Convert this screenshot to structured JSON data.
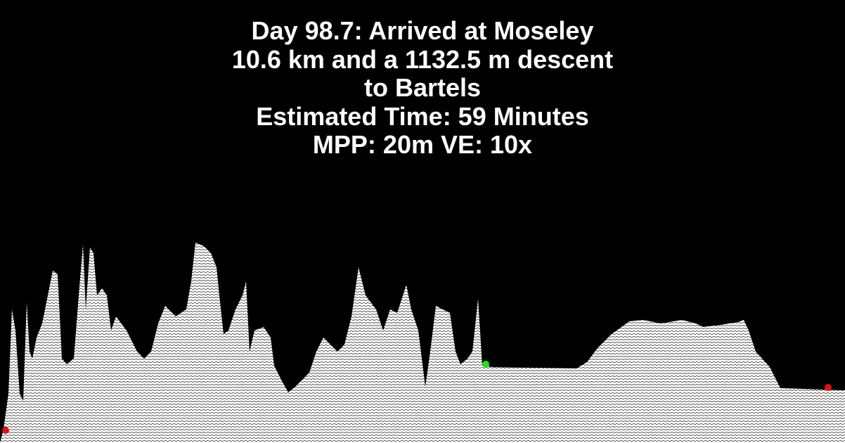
{
  "header": {
    "title": "Day 98.7: Arrived at Moseley",
    "route_lines": [
      "10.6 km and a 1132.5 m descent",
      "to Bartels"
    ],
    "time": "Estimated Time: 59 Minutes",
    "scale": "MPP: 20m VE: 10x"
  }
}
